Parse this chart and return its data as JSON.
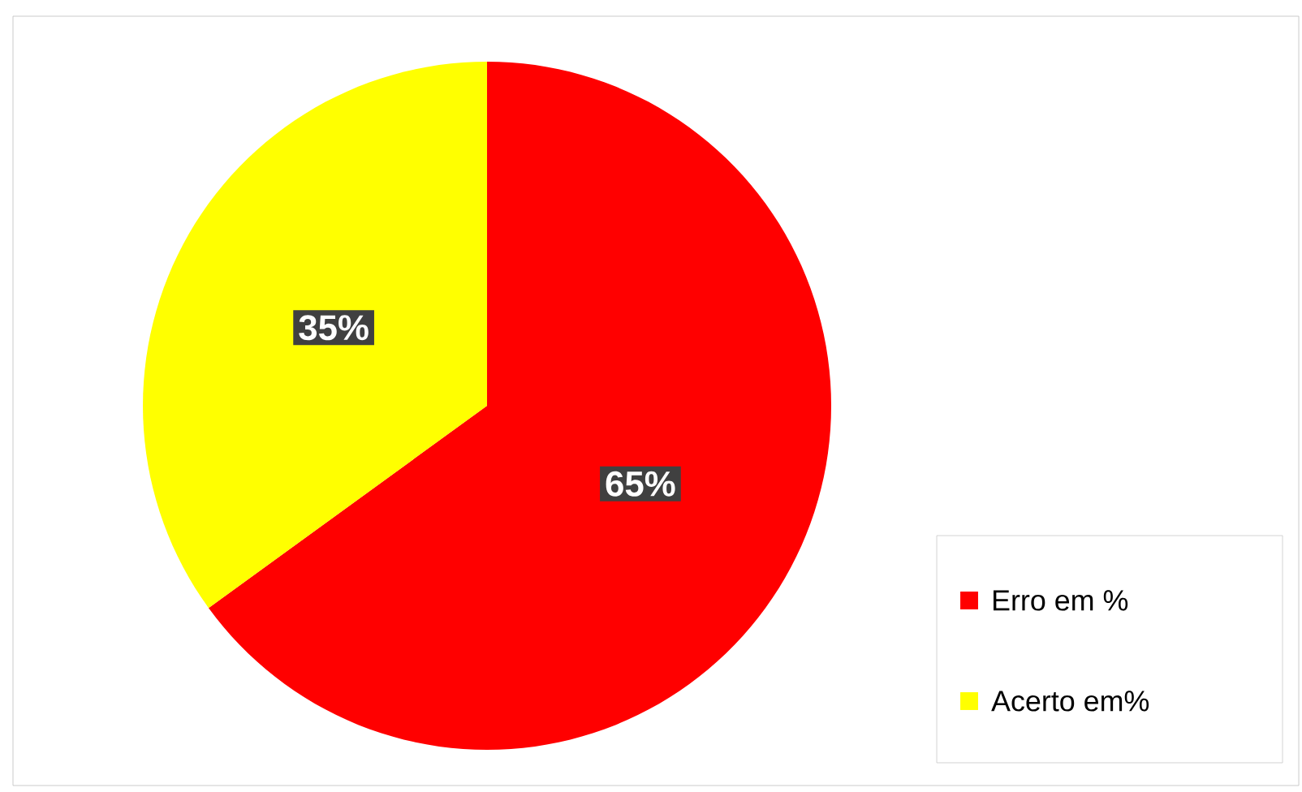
{
  "chart_data": {
    "type": "pie",
    "categories": [
      "Erro em %",
      "Acerto em%"
    ],
    "values": [
      65,
      35
    ],
    "colors": [
      "#ff0000",
      "#ffff00"
    ],
    "value_labels": [
      "65%",
      "35%"
    ],
    "legend": "bottom right"
  }
}
